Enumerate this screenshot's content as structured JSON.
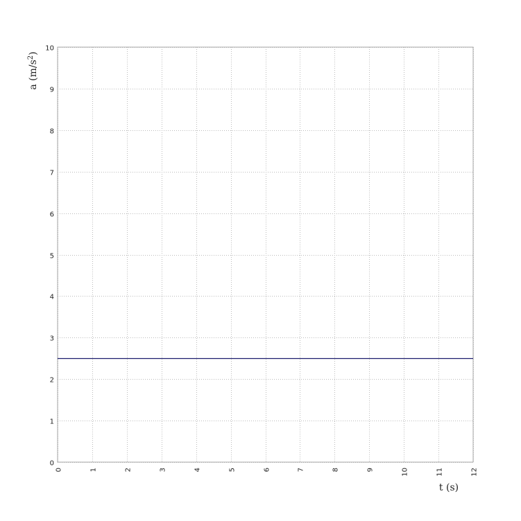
{
  "chart_data": {
    "type": "line",
    "title": "",
    "xlabel": "t (s)",
    "ylabel_main": "a (m/s",
    "ylabel_sup": "2",
    "ylabel_close": ")",
    "xlim": [
      0,
      12
    ],
    "ylim": [
      0,
      10
    ],
    "xticks": [
      "0",
      "1",
      "2",
      "3",
      "4",
      "5",
      "6",
      "7",
      "8",
      "9",
      "10",
      "11",
      "12"
    ],
    "yticks": [
      "0",
      "1",
      "2",
      "3",
      "4",
      "5",
      "6",
      "7",
      "8",
      "9",
      "10"
    ],
    "grid": true,
    "series": [
      {
        "x": [
          0,
          12
        ],
        "y": [
          2.5,
          2.5
        ],
        "color": "#1b1b6b"
      }
    ]
  }
}
